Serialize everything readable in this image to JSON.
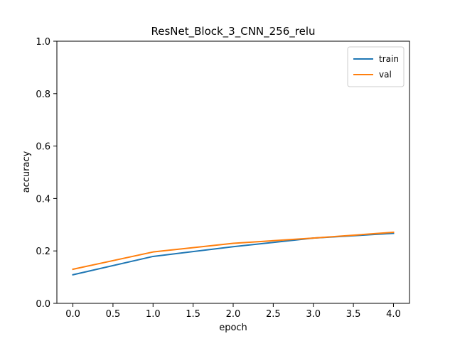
{
  "chart_data": {
    "type": "line",
    "title": "ResNet_Block_3_CNN_256_relu",
    "xlabel": "epoch",
    "ylabel": "accuracy",
    "x": [
      0,
      1,
      2,
      3,
      4
    ],
    "xlim": [
      -0.2,
      4.2
    ],
    "ylim": [
      0.0,
      1.0
    ],
    "xticks": [
      "0.0",
      "0.5",
      "1.0",
      "1.5",
      "2.0",
      "2.5",
      "3.0",
      "3.5",
      "4.0"
    ],
    "xtick_values": [
      0,
      0.5,
      1,
      1.5,
      2,
      2.5,
      3,
      3.5,
      4
    ],
    "yticks": [
      "0.0",
      "0.2",
      "0.4",
      "0.6",
      "0.8",
      "1.0"
    ],
    "ytick_values": [
      0,
      0.2,
      0.4,
      0.6,
      0.8,
      1.0
    ],
    "grid": false,
    "legend_position": "top-right",
    "series": [
      {
        "name": "train",
        "color": "#1f77b4",
        "values": [
          0.109,
          0.179,
          0.216,
          0.249,
          0.267
        ]
      },
      {
        "name": "val",
        "color": "#ff7f0e",
        "values": [
          0.13,
          0.196,
          0.229,
          0.249,
          0.271
        ]
      }
    ]
  }
}
